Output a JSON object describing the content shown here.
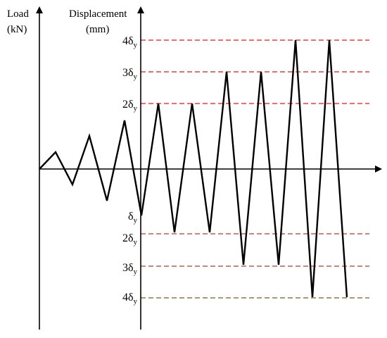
{
  "labels": {
    "load_line1": "Load",
    "load_line2": "(kN)",
    "disp_line1": "Displacement",
    "disp_line2": "(mm)"
  },
  "levels": {
    "upper": [
      {
        "symbol": "δ",
        "sub": "y",
        "coef": "4"
      },
      {
        "symbol": "δ",
        "sub": "y",
        "coef": "3"
      },
      {
        "symbol": "δ",
        "sub": "y",
        "coef": "2"
      }
    ],
    "lower": [
      {
        "symbol": "δ",
        "sub": "y",
        "coef": ""
      },
      {
        "symbol": "δ",
        "sub": "y",
        "coef": "2"
      },
      {
        "symbol": "δ",
        "sub": "y",
        "coef": "3"
      },
      {
        "symbol": "δ",
        "sub": "y",
        "coef": "4"
      }
    ]
  },
  "colors": {
    "upper_dash": "#e3191c",
    "lower_dash": "#c0392b",
    "bottom_dash": "#7a5a1e",
    "curve": "#000000",
    "axes": "#000000"
  }
}
